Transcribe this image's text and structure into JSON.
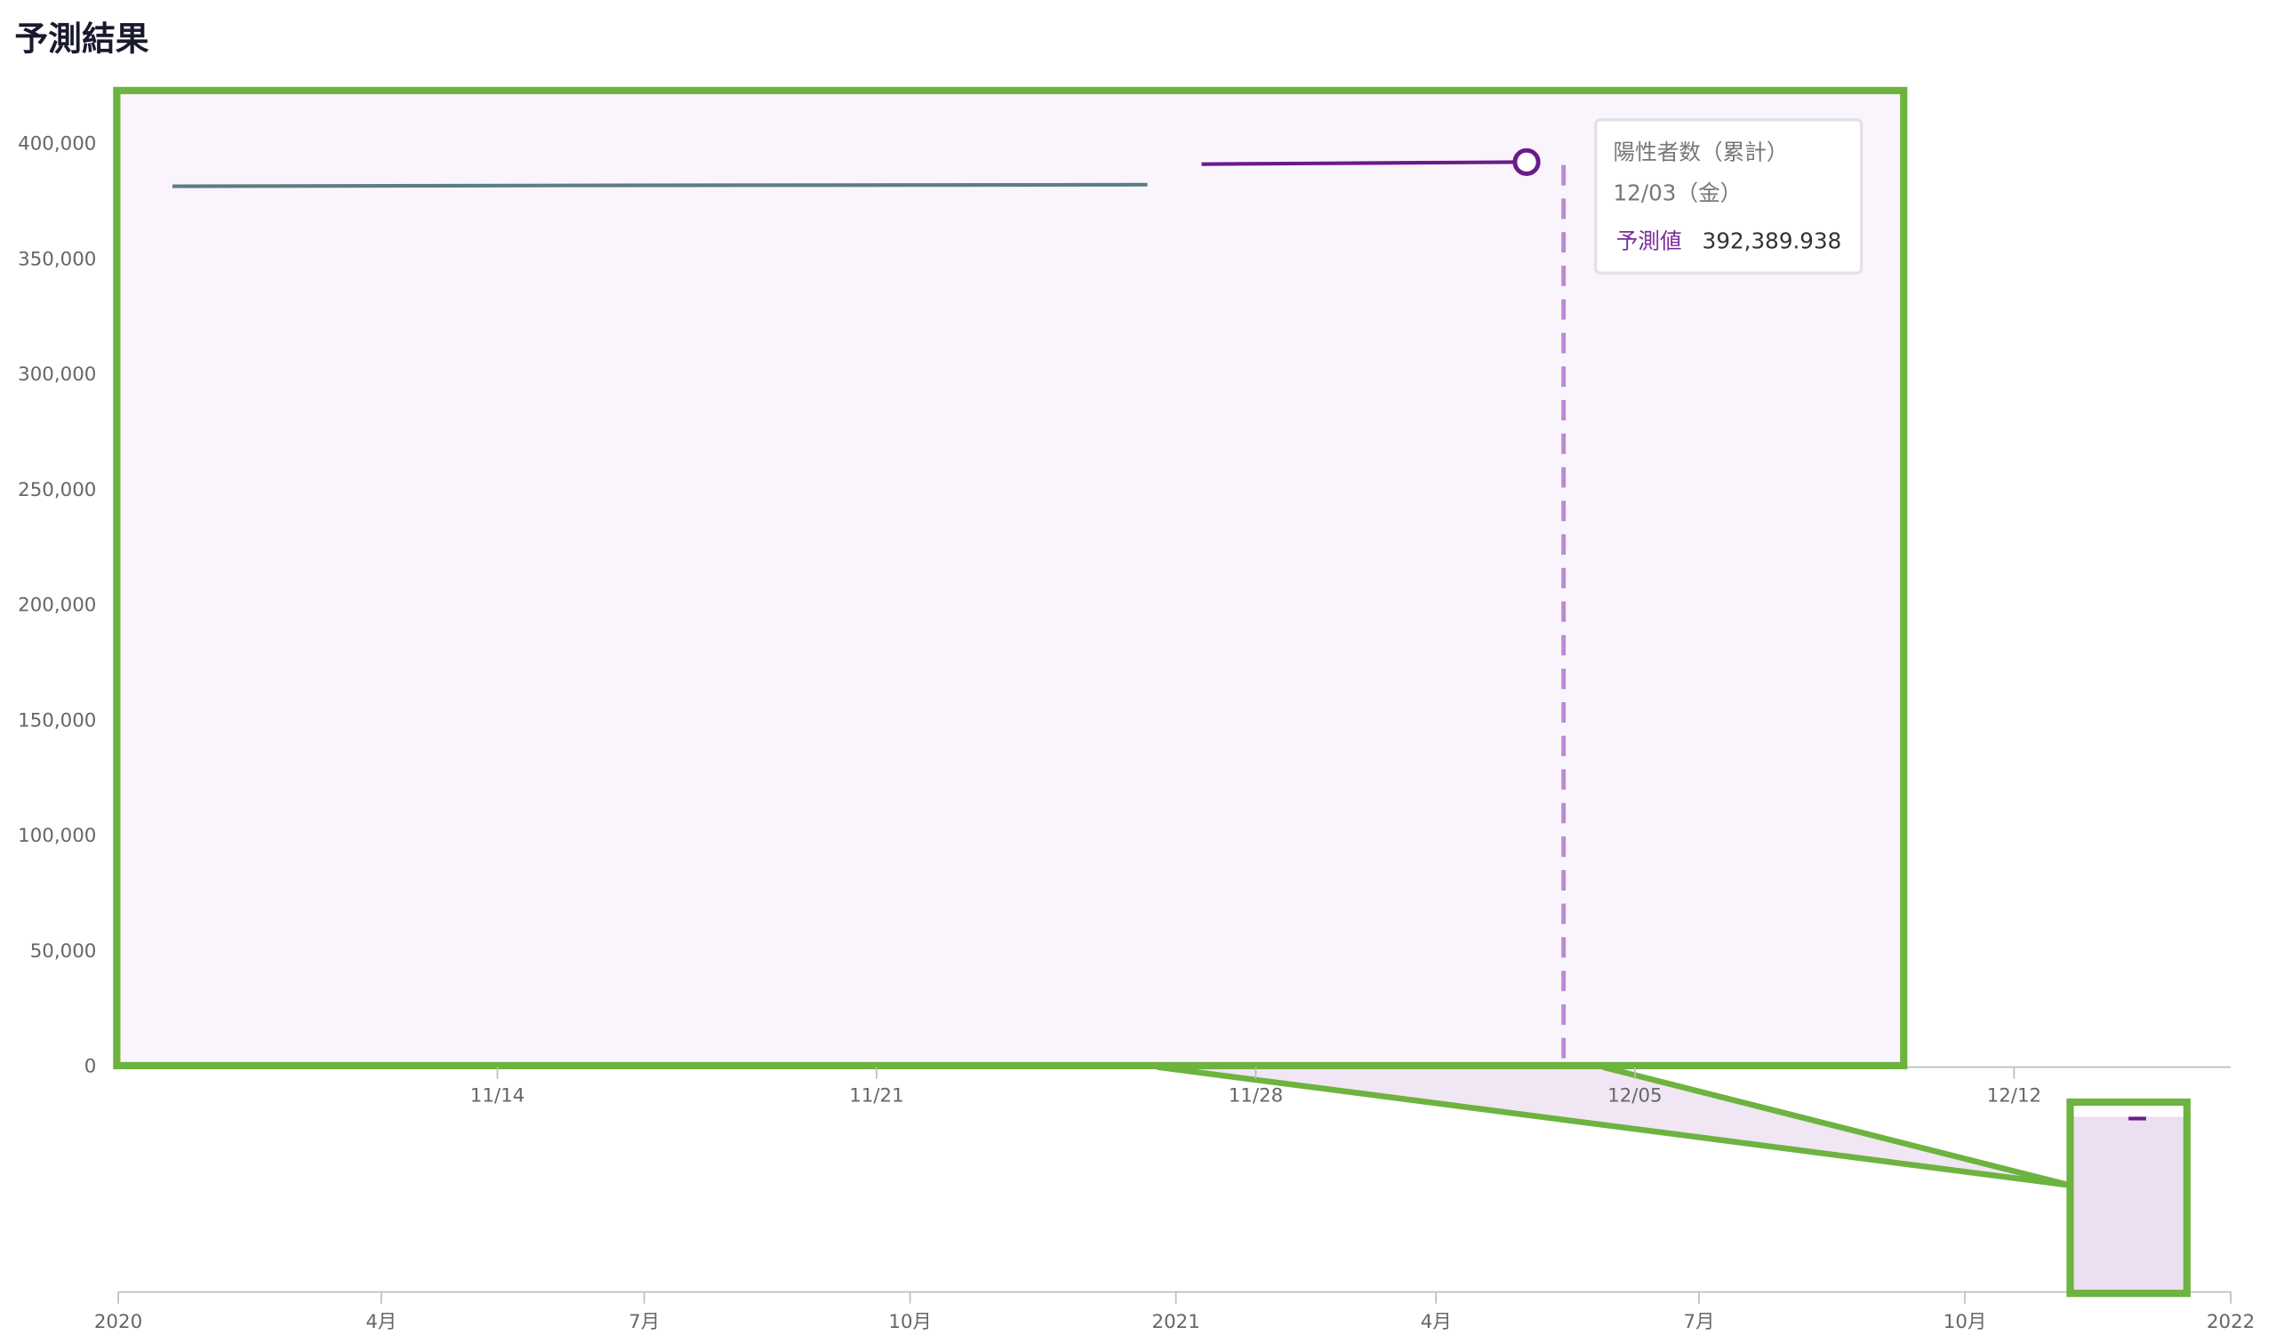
{
  "chart_data": [
    {
      "type": "line",
      "title": "予測結果",
      "xlim": [
        "11/07",
        "12/16"
      ],
      "xticks": [
        "11/14",
        "11/21",
        "11/28",
        "12/05",
        "12/12"
      ],
      "ylim": [
        0,
        400000
      ],
      "yticks": [
        {
          "value": 0,
          "label": "0"
        },
        {
          "value": 50000,
          "label": "50,000"
        },
        {
          "value": 100000,
          "label": "100,000"
        },
        {
          "value": 150000,
          "label": "150,000"
        },
        {
          "value": 200000,
          "label": "200,000"
        },
        {
          "value": 250000,
          "label": "250,000"
        },
        {
          "value": 300000,
          "label": "300,000"
        },
        {
          "value": 350000,
          "label": "350,000"
        },
        {
          "value": 400000,
          "label": "400,000"
        }
      ],
      "series": [
        {
          "color": "#5a7d87",
          "x": [
            "11/08",
            "11/12",
            "11/16",
            "11/20",
            "11/24",
            "11/26"
          ],
          "values": [
            381900,
            382100,
            382300,
            382400,
            382500,
            382600
          ]
        },
        {
          "name": "予測値",
          "color": "#6a1b8a",
          "x": [
            "11/27",
            "11/29",
            "12/01",
            "12/03"
          ],
          "values": [
            391500,
            391800,
            392100,
            392389.938
          ],
          "value_labels": [
            null,
            null,
            null,
            "392,389.938"
          ]
        }
      ],
      "tooltip": {
        "series_title": "陽性者数（累計）",
        "date_label": "12/03（金）",
        "point_series": 1,
        "point_index": 3
      }
    },
    {
      "type": "navigator",
      "xlim": [
        "2020-01",
        "2022-01"
      ],
      "xticks": [
        {
          "value": "2020-01",
          "label": "2020"
        },
        {
          "value": "2020-04",
          "label": "4月"
        },
        {
          "value": "2020-07",
          "label": "7月"
        },
        {
          "value": "2020-10",
          "label": "10月"
        },
        {
          "value": "2021-01",
          "label": "2021"
        },
        {
          "value": "2021-04",
          "label": "4月"
        },
        {
          "value": "2021-07",
          "label": "7月"
        },
        {
          "value": "2021-10",
          "label": "10月"
        },
        {
          "value": "2022-01",
          "label": "2022"
        }
      ]
    }
  ]
}
